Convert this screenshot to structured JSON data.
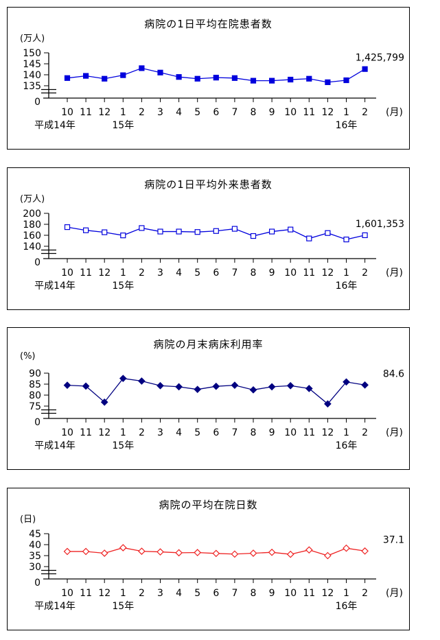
{
  "chart_data": [
    {
      "type": "line",
      "title": "病院の1日平均在院患者数",
      "y_unit_label": "(万人)",
      "x_unit_label": "(月)",
      "y_base_label": "0",
      "y_ticks": [
        150,
        145,
        140,
        135
      ],
      "y_axis_break": true,
      "grid": false,
      "categories": [
        "10",
        "11",
        "12",
        "1",
        "2",
        "3",
        "4",
        "5",
        "6",
        "7",
        "8",
        "9",
        "10",
        "11",
        "12",
        "1",
        "2"
      ],
      "year_labels": [
        {
          "text": "平成14年",
          "month_index": 0,
          "offset": -18
        },
        {
          "text": "15年",
          "month_index": 3,
          "offset": 0
        },
        {
          "text": "16年",
          "month_index": 15,
          "offset": 0
        }
      ],
      "values": [
        138.5,
        139.5,
        138.2,
        139.8,
        143.0,
        141.0,
        139.0,
        138.2,
        138.7,
        138.5,
        137.3,
        137.3,
        137.8,
        138.2,
        136.6,
        137.5,
        142.6
      ],
      "annotation": "1,425,799",
      "color": "#0000dd",
      "marker": "square"
    },
    {
      "type": "line",
      "title": "病院の1日平均外来患者数",
      "y_unit_label": "(万人)",
      "x_unit_label": "(月)",
      "y_base_label": "0",
      "y_ticks": [
        200,
        180,
        160,
        140
      ],
      "y_axis_break": true,
      "grid": false,
      "categories": [
        "10",
        "11",
        "12",
        "1",
        "2",
        "3",
        "4",
        "5",
        "6",
        "7",
        "8",
        "9",
        "10",
        "11",
        "12",
        "1",
        "2"
      ],
      "year_labels": [
        {
          "text": "平成14年",
          "month_index": 0,
          "offset": -18
        },
        {
          "text": "15年",
          "month_index": 3,
          "offset": 0
        },
        {
          "text": "16年",
          "month_index": 15,
          "offset": 0
        }
      ],
      "values": [
        174.9,
        169.1,
        165.5,
        159.8,
        173.2,
        166.8,
        166.8,
        166.0,
        167.8,
        171.8,
        158.7,
        166.8,
        170.5,
        154.2,
        164.1,
        152.4,
        160.1
      ],
      "annotation": "1,601,353",
      "color": "#0000dd",
      "marker": "square-open"
    },
    {
      "type": "line",
      "title": "病院の月末病床利用率",
      "y_unit_label": "(%)",
      "x_unit_label": "(月)",
      "y_base_label": "0",
      "y_ticks": [
        90,
        85,
        80,
        75
      ],
      "y_axis_break": true,
      "grid": false,
      "categories": [
        "10",
        "11",
        "12",
        "1",
        "2",
        "3",
        "4",
        "5",
        "6",
        "7",
        "8",
        "9",
        "10",
        "11",
        "12",
        "1",
        "2"
      ],
      "year_labels": [
        {
          "text": "平成14年",
          "month_index": 0,
          "offset": -18
        },
        {
          "text": "15年",
          "month_index": 3,
          "offset": 0
        },
        {
          "text": "16年",
          "month_index": 15,
          "offset": 0
        }
      ],
      "values": [
        84.5,
        84.1,
        76.8,
        87.6,
        86.4,
        84.3,
        83.8,
        82.6,
        84.0,
        84.5,
        82.4,
        83.8,
        84.3,
        83.0,
        76.0,
        86.0,
        84.6
      ],
      "annotation": "84.6",
      "color": "#000080",
      "marker": "diamond"
    },
    {
      "type": "line",
      "title": "病院の平均在院日数",
      "y_unit_label": "(日)",
      "x_unit_label": "(月)",
      "y_base_label": "0",
      "y_ticks": [
        45,
        40,
        35,
        30
      ],
      "y_axis_break": true,
      "grid": false,
      "categories": [
        "10",
        "11",
        "12",
        "1",
        "2",
        "3",
        "4",
        "5",
        "6",
        "7",
        "8",
        "9",
        "10",
        "11",
        "12",
        "1",
        "2"
      ],
      "year_labels": [
        {
          "text": "平成14年",
          "month_index": 0,
          "offset": -18
        },
        {
          "text": "15年",
          "month_index": 3,
          "offset": 0
        },
        {
          "text": "16年",
          "month_index": 15,
          "offset": 0
        }
      ],
      "values": [
        36.9,
        36.9,
        36.1,
        38.6,
        37.0,
        36.7,
        36.3,
        36.4,
        36.0,
        35.7,
        36.1,
        36.5,
        35.6,
        37.6,
        35.0,
        38.4,
        37.1
      ],
      "annotation": "37.1",
      "color": "#ee2222",
      "marker": "diamond-open"
    }
  ]
}
